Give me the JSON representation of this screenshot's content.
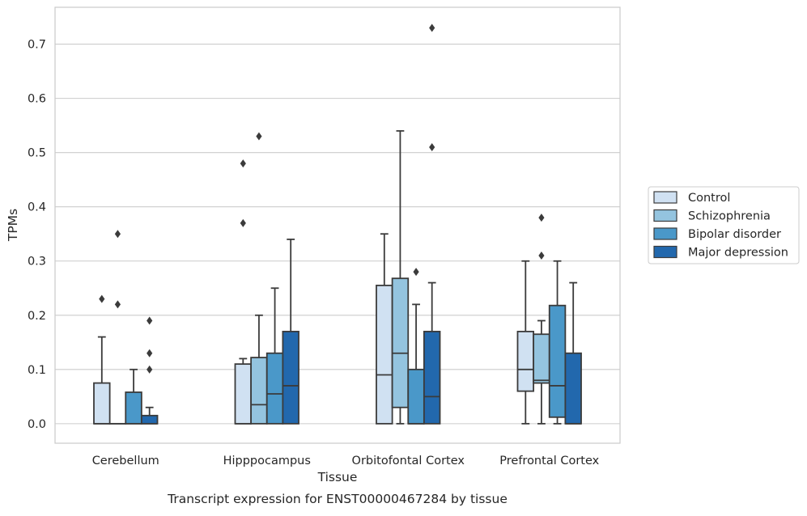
{
  "caption": "Transcript expression for ENST00000467284 by tissue",
  "colors": {
    "Control": "#d0e1f2",
    "Schizophrenia": "#94c4df",
    "Bipolar disorder": "#4a98c9",
    "Major depression": "#2268ad",
    "edge": "#3b3b3b",
    "grid": "#cccccc"
  },
  "chart_data": {
    "type": "box",
    "xlabel": "Tissue",
    "ylabel": "TPMs",
    "ylim": [
      -0.036,
      0.768
    ],
    "yticks": [
      0.0,
      0.1,
      0.2,
      0.3,
      0.4,
      0.5,
      0.6,
      0.7
    ],
    "ytick_labels": [
      "0.0",
      "0.1",
      "0.2",
      "0.3",
      "0.4",
      "0.5",
      "0.6",
      "0.7"
    ],
    "categories": [
      "Cerebellum",
      "Hipppocampus",
      "Orbitofontal Cortex",
      "Prefrontal Cortex"
    ],
    "grid": "horizontal",
    "legend_position": "right",
    "series": [
      {
        "name": "Control",
        "boxes": [
          {
            "whislo": 0.0,
            "q1": 0.0,
            "med": 0.0,
            "q3": 0.075,
            "whishi": 0.16,
            "fliers": [
              0.23
            ]
          },
          {
            "whislo": 0.0,
            "q1": 0.0,
            "med": 0.0,
            "q3": 0.11,
            "whishi": 0.12,
            "fliers": [
              0.37,
              0.48
            ]
          },
          {
            "whislo": 0.0,
            "q1": 0.0,
            "med": 0.09,
            "q3": 0.255,
            "whishi": 0.35,
            "fliers": []
          },
          {
            "whislo": 0.0,
            "q1": 0.06,
            "med": 0.1,
            "q3": 0.17,
            "whishi": 0.3,
            "fliers": []
          }
        ]
      },
      {
        "name": "Schizophrenia",
        "boxes": [
          {
            "whislo": 0.0,
            "q1": 0.0,
            "med": 0.0,
            "q3": 0.0,
            "whishi": 0.0,
            "fliers": [
              0.22,
              0.35
            ]
          },
          {
            "whislo": 0.0,
            "q1": 0.0,
            "med": 0.035,
            "q3": 0.122,
            "whishi": 0.2,
            "fliers": [
              0.53
            ]
          },
          {
            "whislo": 0.0,
            "q1": 0.03,
            "med": 0.13,
            "q3": 0.268,
            "whishi": 0.54,
            "fliers": []
          },
          {
            "whislo": 0.0,
            "q1": 0.075,
            "med": 0.08,
            "q3": 0.165,
            "whishi": 0.19,
            "fliers": [
              0.31,
              0.38
            ]
          }
        ]
      },
      {
        "name": "Bipolar disorder",
        "boxes": [
          {
            "whislo": 0.0,
            "q1": 0.0,
            "med": 0.0,
            "q3": 0.058,
            "whishi": 0.1,
            "fliers": []
          },
          {
            "whislo": 0.0,
            "q1": 0.0,
            "med": 0.055,
            "q3": 0.13,
            "whishi": 0.25,
            "fliers": []
          },
          {
            "whislo": 0.0,
            "q1": 0.0,
            "med": 0.0,
            "q3": 0.1,
            "whishi": 0.22,
            "fliers": [
              0.28
            ]
          },
          {
            "whislo": 0.0,
            "q1": 0.012,
            "med": 0.07,
            "q3": 0.218,
            "whishi": 0.3,
            "fliers": []
          }
        ]
      },
      {
        "name": "Major depression",
        "boxes": [
          {
            "whislo": 0.0,
            "q1": 0.0,
            "med": 0.0,
            "q3": 0.015,
            "whishi": 0.03,
            "fliers": [
              0.1,
              0.13,
              0.19
            ]
          },
          {
            "whislo": 0.0,
            "q1": 0.0,
            "med": 0.07,
            "q3": 0.17,
            "whishi": 0.34,
            "fliers": []
          },
          {
            "whislo": 0.0,
            "q1": 0.0,
            "med": 0.05,
            "q3": 0.17,
            "whishi": 0.26,
            "fliers": [
              0.51,
              0.73
            ]
          },
          {
            "whislo": 0.0,
            "q1": 0.0,
            "med": 0.0,
            "q3": 0.13,
            "whishi": 0.26,
            "fliers": []
          }
        ]
      }
    ]
  }
}
